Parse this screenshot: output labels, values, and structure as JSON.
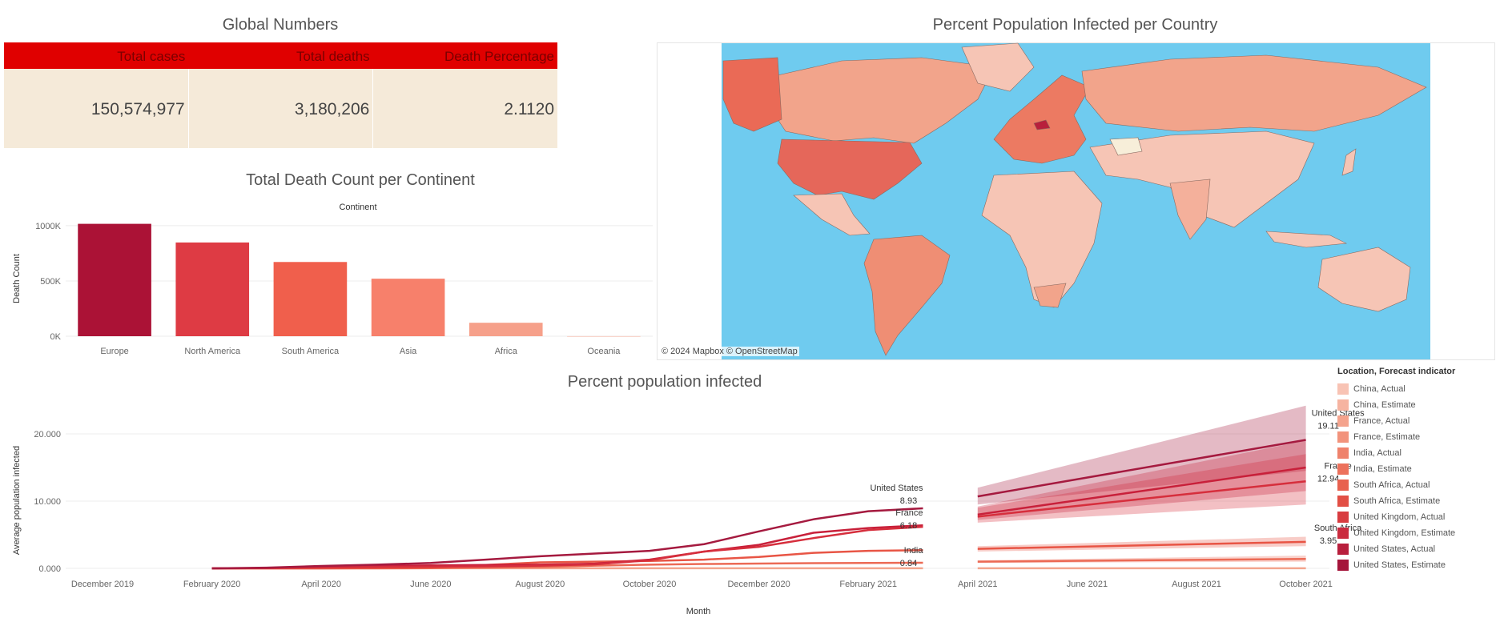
{
  "titles": {
    "global": "Global Numbers",
    "map": "Percent Population Infected per Country",
    "bar": "Total Death Count per Continent",
    "line": "Percent population infected"
  },
  "kpi": {
    "headers": [
      "Total cases",
      "Total deaths",
      "Death Percentage"
    ],
    "values": [
      "150,574,977",
      "3,180,206",
      "2.1120"
    ]
  },
  "map": {
    "attribution": "© 2024 Mapbox  © OpenStreetMap",
    "ocean_color": "#6fcbef",
    "land_colors": [
      "#f6c5b5",
      "#f2a48b",
      "#ea6a56",
      "#c62f3e"
    ]
  },
  "chart_data": [
    {
      "type": "bar",
      "title": "Total Death Count per Continent",
      "xlabel": "Continent",
      "ylabel": "Death Count",
      "categories": [
        "Europe",
        "North America",
        "South America",
        "Asia",
        "Africa",
        "Oceania"
      ],
      "values": [
        1016750,
        847942,
        671440,
        520286,
        121784,
        1046
      ],
      "colors": [
        "#ab1236",
        "#de3b44",
        "#f05f4c",
        "#f7806b",
        "#f6a08a",
        "#f8d0c4"
      ],
      "ylim": [
        0,
        1050000
      ],
      "yticks": [
        0,
        500000,
        1000000
      ],
      "ytick_labels": [
        "0K",
        "500K",
        "1000K"
      ]
    },
    {
      "type": "line",
      "title": "Percent population infected",
      "xlabel": "Month",
      "ylabel": "Average population infected",
      "ylim": [
        0,
        25
      ],
      "yticks": [
        0,
        10,
        20
      ],
      "ytick_labels": [
        "0.000",
        "10.000",
        "20.000"
      ],
      "xtick_labels": [
        "December 2019",
        "February 2020",
        "April 2020",
        "June 2020",
        "August 2020",
        "October 2020",
        "December 2020",
        "February 2021",
        "April 2021",
        "June 2021",
        "August 2021",
        "October 2021"
      ],
      "actual_x": [
        "2020-02",
        "2020-03",
        "2020-04",
        "2020-05",
        "2020-06",
        "2020-07",
        "2020-08",
        "2020-09",
        "2020-10",
        "2020-11",
        "2020-12",
        "2021-01",
        "2021-02",
        "2021-03"
      ],
      "series": [
        {
          "name": "United States",
          "color": "#a51a3f",
          "actual": [
            0.0,
            0.1,
            0.35,
            0.55,
            0.8,
            1.3,
            1.8,
            2.2,
            2.6,
            3.6,
            5.5,
            7.3,
            8.5,
            8.93
          ],
          "forecast": [
            10.7,
            19.11
          ],
          "band": [
            [
              9.5,
              12.0
            ],
            [
              14.5,
              24.2
            ]
          ],
          "end_label": "19.11",
          "last_actual_label": "8.93"
        },
        {
          "name": "France",
          "color": "#d62e3c",
          "actual": [
            0.0,
            0.05,
            0.15,
            0.2,
            0.25,
            0.3,
            0.4,
            0.6,
            1.2,
            2.5,
            3.2,
            4.5,
            5.7,
            6.18
          ],
          "forecast": [
            7.7,
            12.94
          ],
          "band": [
            [
              6.8,
              9.0
            ],
            [
              9.5,
              17.0
            ]
          ],
          "end_label": "12.94",
          "last_actual_label": "6.18"
        },
        {
          "name": "United Kingdom",
          "color": "#c8203a",
          "actual": [
            0.0,
            0.05,
            0.2,
            0.35,
            0.45,
            0.5,
            0.55,
            0.7,
            1.3,
            2.5,
            3.5,
            5.3,
            6.0,
            6.4
          ],
          "forecast": [
            8.0,
            15.0
          ],
          "band": [
            [
              7.2,
              9.2
            ],
            [
              11.5,
              19.0
            ]
          ]
        },
        {
          "name": "South Africa",
          "color": "#e85545",
          "actual": [
            0.0,
            0.0,
            0.0,
            0.05,
            0.1,
            0.5,
            0.9,
            1.0,
            1.1,
            1.3,
            1.7,
            2.3,
            2.6,
            2.7
          ],
          "forecast": [
            2.9,
            3.95
          ],
          "band": [
            [
              2.5,
              3.3
            ],
            [
              3.3,
              4.7
            ]
          ],
          "end_label": "3.95"
        },
        {
          "name": "India",
          "color": "#ec6a55",
          "actual": [
            0.0,
            0.0,
            0.0,
            0.0,
            0.03,
            0.1,
            0.2,
            0.4,
            0.55,
            0.65,
            0.72,
            0.78,
            0.81,
            0.84
          ],
          "forecast": [
            1.0,
            1.4
          ],
          "band": [
            [
              0.8,
              1.2
            ],
            [
              1.0,
              1.9
            ]
          ],
          "last_actual_label": "0.84"
        },
        {
          "name": "China",
          "color": "#f3a58e",
          "actual": [
            0.0,
            0.01,
            0.01,
            0.01,
            0.01,
            0.01,
            0.01,
            0.01,
            0.01,
            0.01,
            0.01,
            0.01,
            0.01,
            0.01
          ],
          "forecast": [
            0.01,
            0.02
          ],
          "band": [
            [
              0.0,
              0.05
            ],
            [
              0.0,
              0.1
            ]
          ]
        }
      ]
    }
  ],
  "legend": {
    "title": "Location, Forecast indicator",
    "items": [
      {
        "label": "China, Actual",
        "color": "#f8c3b4"
      },
      {
        "label": "China, Estimate",
        "color": "#f6b4a1"
      },
      {
        "label": "France, Actual",
        "color": "#f4a38d"
      },
      {
        "label": "France, Estimate",
        "color": "#f2937c"
      },
      {
        "label": "India, Actual",
        "color": "#ef826c"
      },
      {
        "label": "India, Estimate",
        "color": "#ec715c"
      },
      {
        "label": "South Africa, Actual",
        "color": "#e8614f"
      },
      {
        "label": "South Africa, Estimate",
        "color": "#e24f45"
      },
      {
        "label": "United Kingdom, Actual",
        "color": "#d83c40"
      },
      {
        "label": "United Kingdom, Estimate",
        "color": "#ca2b3e"
      },
      {
        "label": "United States, Actual",
        "color": "#b81f3d"
      },
      {
        "label": "United States, Estimate",
        "color": "#a5163b"
      }
    ]
  }
}
